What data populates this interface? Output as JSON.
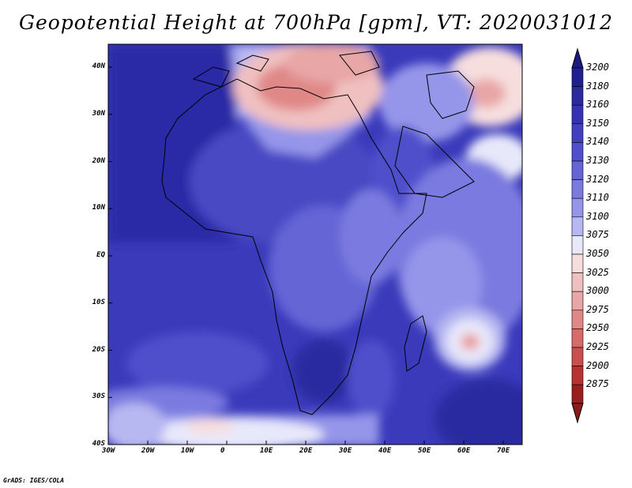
{
  "title": "Geopotential Height at 700hPa [gpm], VT: 2020031012",
  "credit": "GrADS: IGES/COLA",
  "lat_labels": [
    "40N",
    "30N",
    "20N",
    "10N",
    "EQ",
    "10S",
    "20S",
    "30S",
    "40S"
  ],
  "lon_labels": [
    "30W",
    "20W",
    "10W",
    "0",
    "10E",
    "20E",
    "30E",
    "40E",
    "50E",
    "60E",
    "70E"
  ],
  "colorbar": {
    "levels": [
      "3200",
      "3180",
      "3160",
      "3150",
      "3140",
      "3130",
      "3120",
      "3110",
      "3100",
      "3075",
      "3050",
      "3025",
      "3000",
      "2975",
      "2950",
      "2925",
      "2900",
      "2875"
    ],
    "colors": [
      "#1f1f8f",
      "#2a2aa0",
      "#3333b3",
      "#4040c0",
      "#5050cc",
      "#6565d6",
      "#7a7ae0",
      "#9595ea",
      "#b7b7f2",
      "#e8e8fb",
      "#f7dede",
      "#f0c0c0",
      "#e8a6a6",
      "#e08888",
      "#d86a6a",
      "#cc4f4f",
      "#b83232",
      "#9a1e1e"
    ],
    "upper_arrow_color": "#1a1a80",
    "lower_arrow_color": "#8b1a1a"
  },
  "chart_data": {
    "type": "heatmap",
    "title": "Geopotential Height at 700hPa [gpm], VT: 2020031012",
    "x_range": [
      "30W",
      "75E"
    ],
    "y_range": [
      "40S",
      "45N"
    ],
    "units": "gpm",
    "field_range": [
      2875,
      3200
    ]
  }
}
